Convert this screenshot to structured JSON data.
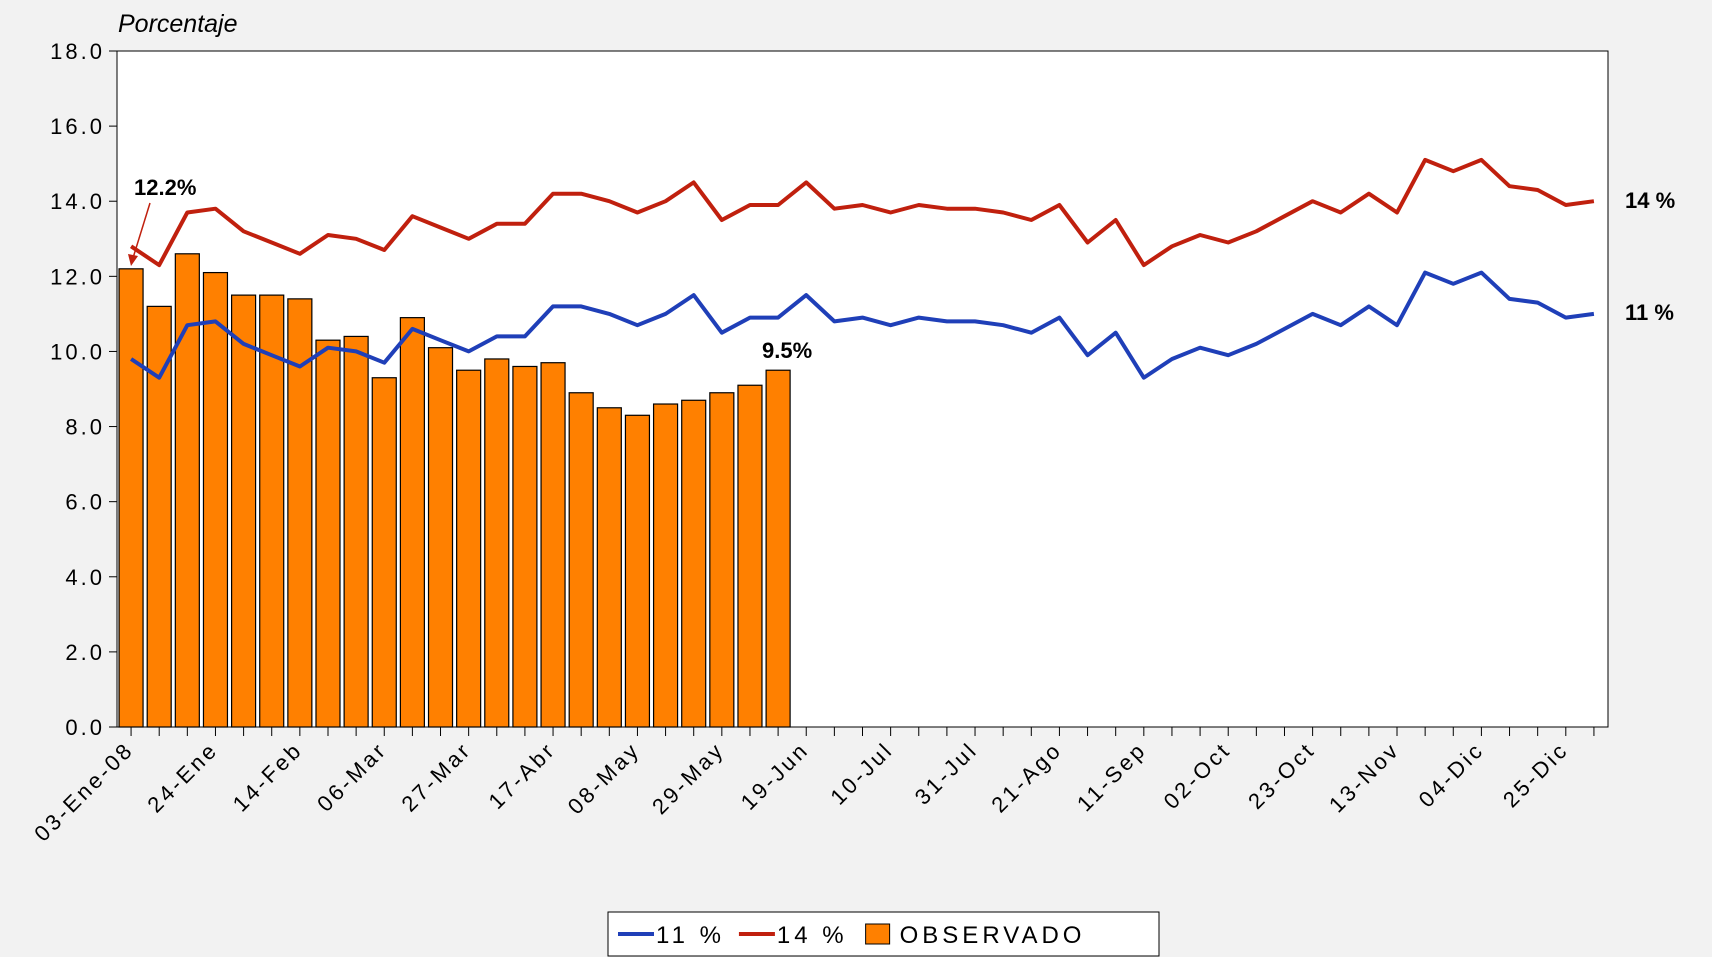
{
  "chart_data": {
    "type": "bar-line",
    "y_label": "Porcentaje",
    "categories": [
      "03-Ene-08",
      null,
      null,
      "24-Ene",
      null,
      null,
      "14-Feb",
      null,
      null,
      "06-Mar",
      null,
      null,
      "27-Mar",
      null,
      null,
      "17-Abr",
      null,
      null,
      "08-May",
      null,
      null,
      "29-May",
      null,
      null,
      "19-Jun",
      null,
      null,
      "10-Jul",
      null,
      null,
      "31-Jul",
      null,
      null,
      "21-Ago",
      null,
      null,
      "11-Sep",
      null,
      null,
      "02-Oct",
      null,
      null,
      "23-Oct",
      null,
      null,
      "13-Nov",
      null,
      null,
      "04-Dic",
      null,
      null,
      "25-Dic",
      null
    ],
    "series": [
      {
        "name": "11 %",
        "type": "line",
        "color": "#1f3fb8",
        "values": [
          9.8,
          9.3,
          10.7,
          10.8,
          10.2,
          9.9,
          9.6,
          10.1,
          10.0,
          9.7,
          10.6,
          10.3,
          10.0,
          10.4,
          10.4,
          11.2,
          11.2,
          11.0,
          10.7,
          11.0,
          11.5,
          10.5,
          10.9,
          10.9,
          11.5,
          10.8,
          10.9,
          10.7,
          10.9,
          10.8,
          10.8,
          10.7,
          10.5,
          10.9,
          9.9,
          10.5,
          9.3,
          9.8,
          10.1,
          9.9,
          10.2,
          10.6,
          11.0,
          10.7,
          11.2,
          10.7,
          12.1,
          11.8,
          12.1,
          11.4,
          11.3,
          10.9,
          11.0
        ]
      },
      {
        "name": "14 %",
        "type": "line",
        "color": "#c0200e",
        "values": [
          12.8,
          12.3,
          13.7,
          13.8,
          13.2,
          12.9,
          12.6,
          13.1,
          13.0,
          12.7,
          13.6,
          13.3,
          13.0,
          13.4,
          13.4,
          14.2,
          14.2,
          14.0,
          13.7,
          14.0,
          14.5,
          13.5,
          13.9,
          13.9,
          14.5,
          13.8,
          13.9,
          13.7,
          13.9,
          13.8,
          13.8,
          13.7,
          13.5,
          13.9,
          12.9,
          13.5,
          12.3,
          12.8,
          13.1,
          12.9,
          13.2,
          13.6,
          14.0,
          13.7,
          14.2,
          13.7,
          15.1,
          14.8,
          15.1,
          14.4,
          14.3,
          13.9,
          14.0
        ]
      },
      {
        "name": "OBSERVADO",
        "type": "bar",
        "color": "#ff8000",
        "values": [
          12.2,
          11.2,
          12.6,
          12.1,
          11.5,
          11.5,
          11.4,
          10.3,
          10.4,
          9.3,
          10.9,
          10.1,
          9.5,
          9.8,
          9.6,
          9.7,
          8.9,
          8.5,
          8.3,
          8.6,
          8.7,
          8.9,
          9.1,
          9.5,
          null,
          null,
          null,
          null,
          null,
          null,
          null,
          null,
          null,
          null,
          null,
          null,
          null,
          null,
          null,
          null,
          null,
          null,
          null,
          null,
          null,
          null,
          null,
          null,
          null,
          null,
          null,
          null,
          null
        ]
      }
    ],
    "annotations": [
      "12.2%",
      "9.5%"
    ],
    "ylim": [
      0,
      18
    ],
    "yticks": [
      {
        "value": 0,
        "label": "0.0"
      },
      {
        "value": 2,
        "label": "2.0"
      },
      {
        "value": 4,
        "label": "4.0"
      },
      {
        "value": 6,
        "label": "6.0"
      },
      {
        "value": 8,
        "label": "8.0"
      },
      {
        "value": 10,
        "label": "10.0"
      },
      {
        "value": 12,
        "label": "12.0"
      },
      {
        "value": 14,
        "label": "14.0"
      },
      {
        "value": 16,
        "label": "16.0"
      },
      {
        "value": 18,
        "label": "18.0"
      }
    ],
    "legend": "bottom"
  }
}
